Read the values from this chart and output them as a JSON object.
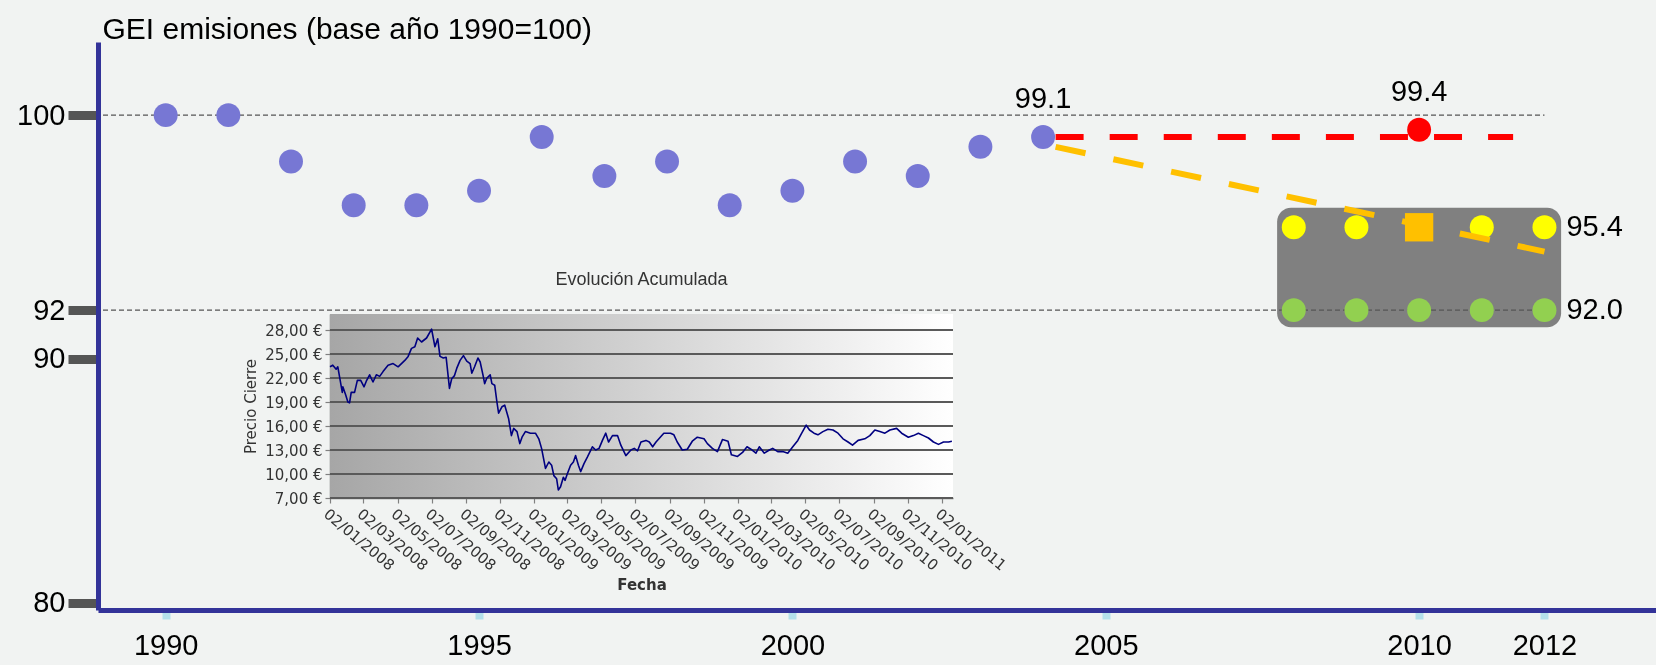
{
  "chart_data": [
    {
      "type": "scatter",
      "ylabel": "GEI emisiones (base año 1990=100)",
      "xlim": [
        1989,
        2013.7
      ],
      "ylim": [
        79.7,
        103
      ],
      "xticks": [
        1990,
        1995,
        2000,
        2005,
        2010,
        2012
      ],
      "yticks": [
        80,
        90,
        92,
        100
      ],
      "marker": "circle",
      "series": [
        {
          "type": "bar",
          "color": "#808080",
          "x": [
            2010
          ],
          "base": [
            91.3
          ],
          "values": [
            4.9
          ]
        },
        {
          "type": "scatter",
          "color": "#7777d4",
          "x": [
            1990,
            1991,
            1992,
            1993,
            1994,
            1995,
            1996,
            1997,
            1998,
            1999,
            2000,
            2001,
            2002,
            2003,
            2004
          ],
          "values": [
            100.0,
            100.0,
            98.1,
            96.3,
            96.3,
            96.9,
            99.1,
            97.5,
            98.1,
            96.3,
            96.9,
            98.1,
            97.5,
            98.7,
            99.1
          ]
        },
        {
          "type": "scatter",
          "color": "#ffff00",
          "x": [
            2008,
            2009,
            2011,
            2012
          ],
          "values": [
            95.4,
            95.4,
            95.4,
            95.4
          ]
        },
        {
          "type": "scatter",
          "color": "#92d050",
          "x": [
            2008,
            2009,
            2010,
            2011,
            2012
          ],
          "values": [
            92.0,
            92.0,
            92.0,
            92.0,
            92.0
          ]
        },
        {
          "type": "line",
          "color": "#ff0000",
          "line_style": "dashed",
          "marker": "none",
          "x": [
            2004.2,
            2011.5
          ],
          "values": [
            99.1,
            99.1
          ]
        },
        {
          "type": "line",
          "color": "#ffc000",
          "line_style": "dashed",
          "marker": "none",
          "x": [
            2004.2,
            2012
          ],
          "values": [
            98.7,
            94.4
          ]
        },
        {
          "type": "scatter",
          "color": "#ff0000",
          "x": [
            2010
          ],
          "values": [
            99.4
          ]
        },
        {
          "type": "scatter",
          "color": "#ffc000",
          "marker": "square",
          "x": [
            2010
          ],
          "values": [
            95.4
          ]
        }
      ],
      "ref_lines": [
        {
          "axis": "y",
          "value": 100,
          "color": "#555555",
          "line_style": "dashed"
        },
        {
          "axis": "y",
          "value": 92,
          "color": "#555555",
          "line_style": "dashed"
        }
      ],
      "annotations": [
        {
          "text": "99.1",
          "x": 2004,
          "y": 99.1
        },
        {
          "text": "99.4",
          "x": 2010,
          "y": 99.4
        },
        {
          "text": "95.4",
          "x": 2012,
          "y": 95.4
        },
        {
          "text": "92.0",
          "x": 2012,
          "y": 92.0
        }
      ]
    },
    {
      "type": "line",
      "title": "Evolución Acumulada",
      "xlabel": "Fecha",
      "ylabel": "Precio Cierre",
      "grid": "y",
      "xlim": [
        "2008-01-02",
        "2011-01-22"
      ],
      "ylim": [
        7,
        30
      ],
      "xticks": [
        {
          "value": "2008-01-02",
          "label": "02/01/2008"
        },
        {
          "value": "2008-03-02",
          "label": "02/03/2008"
        },
        {
          "value": "2008-05-02",
          "label": "02/05/2008"
        },
        {
          "value": "2008-07-02",
          "label": "02/07/2008"
        },
        {
          "value": "2008-09-02",
          "label": "02/09/2008"
        },
        {
          "value": "2008-11-02",
          "label": "02/11/2008"
        },
        {
          "value": "2009-01-02",
          "label": "02/01/2009"
        },
        {
          "value": "2009-03-02",
          "label": "02/03/2009"
        },
        {
          "value": "2009-05-02",
          "label": "02/05/2009"
        },
        {
          "value": "2009-07-02",
          "label": "02/07/2009"
        },
        {
          "value": "2009-09-02",
          "label": "02/09/2009"
        },
        {
          "value": "2009-11-02",
          "label": "02/11/2009"
        },
        {
          "value": "2010-01-02",
          "label": "02/01/2010"
        },
        {
          "value": "2010-03-02",
          "label": "02/03/2010"
        },
        {
          "value": "2010-05-02",
          "label": "02/05/2010"
        },
        {
          "value": "2010-07-02",
          "label": "02/07/2010"
        },
        {
          "value": "2010-09-02",
          "label": "02/09/2010"
        },
        {
          "value": "2010-11-02",
          "label": "02/11/2010"
        },
        {
          "value": "2011-01-02",
          "label": "02/01/2011"
        }
      ],
      "yticks": [
        {
          "value": 7,
          "label": "7,00 €"
        },
        {
          "value": 10,
          "label": "10,00 €"
        },
        {
          "value": 13,
          "label": "13,00 €"
        },
        {
          "value": 16,
          "label": "16,00 €"
        },
        {
          "value": 19,
          "label": "19,00 €"
        },
        {
          "value": 22,
          "label": "22,00 €"
        },
        {
          "value": 25,
          "label": "25,00 €"
        },
        {
          "value": 28,
          "label": "28,00 €"
        }
      ],
      "x": [
        "2008-01-02",
        "2008-01-07",
        "2008-01-13",
        "2008-01-16",
        "2008-01-24",
        "2008-01-25",
        "2008-01-30",
        "2008-02-03",
        "2008-02-06",
        "2008-02-09",
        "2008-02-15",
        "2008-02-20",
        "2008-02-26",
        "2008-03-03",
        "2008-03-07",
        "2008-03-13",
        "2008-03-19",
        "2008-03-25",
        "2008-03-31",
        "2008-04-06",
        "2008-04-15",
        "2008-04-24",
        "2008-05-03",
        "2008-05-15",
        "2008-05-21",
        "2008-05-27",
        "2008-06-02",
        "2008-06-07",
        "2008-06-14",
        "2008-06-23",
        "2008-07-02",
        "2008-07-05",
        "2008-07-08",
        "2008-07-13",
        "2008-07-17",
        "2008-07-23",
        "2008-07-28",
        "2008-08-03",
        "2008-08-07",
        "2008-08-12",
        "2008-08-16",
        "2008-08-22",
        "2008-08-28",
        "2008-09-03",
        "2008-09-09",
        "2008-09-12",
        "2008-09-17",
        "2008-09-23",
        "2008-09-27",
        "2008-10-02",
        "2008-10-05",
        "2008-10-09",
        "2008-10-15",
        "2008-10-18",
        "2008-10-23",
        "2008-10-27",
        "2008-10-30",
        "2008-11-05",
        "2008-11-10",
        "2008-11-17",
        "2008-11-22",
        "2008-11-26",
        "2008-12-02",
        "2008-12-07",
        "2008-12-11",
        "2008-12-17",
        "2008-12-26",
        "2009-01-04",
        "2009-01-10",
        "2009-01-15",
        "2009-01-22",
        "2009-01-28",
        "2009-02-02",
        "2009-02-06",
        "2009-02-11",
        "2009-02-14",
        "2009-02-18",
        "2009-02-23",
        "2009-02-26",
        "2009-03-02",
        "2009-03-08",
        "2009-03-13",
        "2009-03-17",
        "2009-03-22",
        "2009-03-26",
        "2009-04-01",
        "2009-04-07",
        "2009-04-16",
        "2009-04-22",
        "2009-04-28",
        "2009-05-04",
        "2009-05-10",
        "2009-05-15",
        "2009-05-22",
        "2009-05-31",
        "2009-06-06",
        "2009-06-15",
        "2009-06-24",
        "2009-06-30",
        "2009-07-06",
        "2009-07-12",
        "2009-07-21",
        "2009-07-27",
        "2009-08-02",
        "2009-08-08",
        "2009-08-22",
        "2009-09-03",
        "2009-09-09",
        "2009-09-15",
        "2009-09-24",
        "2009-10-03",
        "2009-10-12",
        "2009-10-21",
        "2009-11-02",
        "2009-11-08",
        "2009-11-17",
        "2009-11-26",
        "2009-12-05",
        "2009-12-15",
        "2009-12-21",
        "2010-01-01",
        "2010-01-10",
        "2010-01-18",
        "2010-01-25",
        "2010-02-03",
        "2010-02-09",
        "2010-02-18",
        "2010-02-27",
        "2010-03-05",
        "2010-03-14",
        "2010-03-23",
        "2010-04-01",
        "2010-04-10",
        "2010-04-19",
        "2010-04-26",
        "2010-05-04",
        "2010-05-10",
        "2010-05-18",
        "2010-05-25",
        "2010-06-03",
        "2010-06-12",
        "2010-06-21",
        "2010-06-30",
        "2010-07-09",
        "2010-07-18",
        "2010-07-26",
        "2010-08-05",
        "2010-08-17",
        "2010-08-26",
        "2010-09-04",
        "2010-09-13",
        "2010-09-22",
        "2010-10-01",
        "2010-10-13",
        "2010-10-22",
        "2010-11-03",
        "2010-11-12",
        "2010-11-21",
        "2010-11-30",
        "2010-12-09",
        "2010-12-18",
        "2010-12-27",
        "2011-01-05",
        "2011-01-14",
        "2011-01-20"
      ],
      "series": [
        {
          "color": "#000080",
          "values": [
            23.4,
            23.6,
            23.1,
            23.4,
            20.2,
            20.9,
            19.9,
            19.0,
            18.9,
            20.2,
            20.2,
            21.7,
            21.7,
            20.9,
            21.6,
            22.4,
            21.5,
            22.4,
            22.2,
            22.8,
            23.6,
            23.8,
            23.4,
            24.2,
            24.7,
            25.7,
            25.9,
            27.0,
            26.5,
            27.0,
            28.1,
            27.0,
            25.9,
            26.9,
            24.7,
            24.5,
            24.6,
            20.7,
            21.9,
            22.3,
            23.2,
            24.2,
            24.8,
            24.1,
            23.8,
            22.6,
            23.4,
            24.5,
            24.0,
            22.4,
            21.3,
            22.0,
            22.4,
            21.3,
            21.1,
            19.0,
            17.6,
            18.4,
            18.6,
            16.9,
            14.8,
            15.7,
            15.3,
            13.8,
            14.6,
            15.3,
            15.1,
            15.1,
            14.4,
            13.2,
            10.7,
            11.5,
            11.1,
            9.8,
            9.4,
            8.0,
            8.4,
            9.6,
            9.2,
            10.0,
            11.1,
            11.5,
            12.3,
            11.1,
            10.3,
            11.3,
            12.1,
            13.4,
            13.0,
            13.2,
            14.2,
            15.1,
            14.0,
            14.8,
            14.8,
            13.6,
            12.3,
            13.0,
            13.2,
            12.9,
            14.0,
            14.2,
            14.0,
            13.4,
            14.0,
            15.1,
            15.1,
            14.9,
            14.0,
            13.0,
            13.1,
            14.1,
            14.6,
            14.4,
            13.8,
            13.2,
            12.8,
            14.3,
            14.1,
            12.4,
            12.2,
            12.7,
            13.4,
            13.1,
            12.6,
            13.4,
            12.6,
            13.0,
            13.2,
            12.8,
            12.8,
            12.6,
            13.4,
            14.2,
            15.1,
            16.1,
            15.5,
            15.1,
            14.9,
            15.3,
            15.6,
            15.5,
            15.1,
            14.4,
            14.0,
            13.6,
            14.2,
            14.4,
            14.8,
            15.5,
            15.3,
            15.1,
            15.5,
            15.7,
            15.1,
            14.6,
            14.8,
            15.1,
            14.8,
            14.5,
            14.0,
            13.7,
            14.0,
            14.0,
            14.1
          ]
        }
      ]
    }
  ]
}
